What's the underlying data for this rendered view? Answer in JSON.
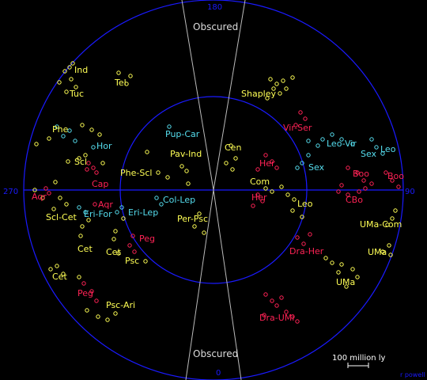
{
  "axis_labels": {
    "top": "180",
    "bottom": "0",
    "left": "270",
    "right": "90"
  },
  "zone_of_avoidance": {
    "top_label": "Obscured",
    "bottom_label": "Obscured"
  },
  "scale_bar": {
    "label": "100 million ly"
  },
  "credit": "r powell",
  "colors": {
    "background": "#000000",
    "grid": "#1a1aff",
    "zone": "#bbbbbb",
    "yellow": "#ffff55",
    "cyan": "#55ddee",
    "red": "#ff2255",
    "white": "#ffffff"
  },
  "groups": [
    {
      "name": "Ind",
      "color": "yellow"
    },
    {
      "name": "Tuc",
      "color": "yellow"
    },
    {
      "name": "Tel",
      "color": "yellow"
    },
    {
      "name": "Phe",
      "color": "yellow"
    },
    {
      "name": "Hor",
      "color": "cyan"
    },
    {
      "name": "Pup-Car",
      "color": "cyan"
    },
    {
      "name": "Scl",
      "color": "yellow"
    },
    {
      "name": "Cap",
      "color": "red"
    },
    {
      "name": "Phe-Scl",
      "color": "yellow"
    },
    {
      "name": "Pav-Ind",
      "color": "yellow"
    },
    {
      "name": "Aqr",
      "color": "red"
    },
    {
      "name": "Aqr",
      "color": "red"
    },
    {
      "name": "Scl-Cet",
      "color": "yellow"
    },
    {
      "name": "Eri-For",
      "color": "cyan"
    },
    {
      "name": "Eri-Lep",
      "color": "cyan"
    },
    {
      "name": "Col-Lep",
      "color": "cyan"
    },
    {
      "name": "Per-Psc",
      "color": "yellow"
    },
    {
      "name": "Peg",
      "color": "red"
    },
    {
      "name": "Cet",
      "color": "yellow"
    },
    {
      "name": "Cet",
      "color": "yellow"
    },
    {
      "name": "Psc",
      "color": "yellow"
    },
    {
      "name": "Cet",
      "color": "yellow"
    },
    {
      "name": "Peg",
      "color": "red"
    },
    {
      "name": "Psc-Ari",
      "color": "yellow"
    },
    {
      "name": "Shapley",
      "color": "yellow"
    },
    {
      "name": "Vir-Ser",
      "color": "red"
    },
    {
      "name": "Cen",
      "color": "yellow"
    },
    {
      "name": "Leo-Vir",
      "color": "cyan"
    },
    {
      "name": "Sex",
      "color": "cyan"
    },
    {
      "name": "Leo",
      "color": "cyan"
    },
    {
      "name": "Sex",
      "color": "cyan"
    },
    {
      "name": "Her",
      "color": "red"
    },
    {
      "name": "Boo",
      "color": "red"
    },
    {
      "name": "Boo",
      "color": "red"
    },
    {
      "name": "Com",
      "color": "yellow"
    },
    {
      "name": "Her",
      "color": "red"
    },
    {
      "name": "Leo",
      "color": "yellow"
    },
    {
      "name": "CBo",
      "color": "red"
    },
    {
      "name": "UMa-Com",
      "color": "yellow"
    },
    {
      "name": "UMa",
      "color": "yellow"
    },
    {
      "name": "Dra-Her",
      "color": "red"
    },
    {
      "name": "UMa",
      "color": "yellow"
    },
    {
      "name": "Dra-UMi",
      "color": "red"
    }
  ]
}
